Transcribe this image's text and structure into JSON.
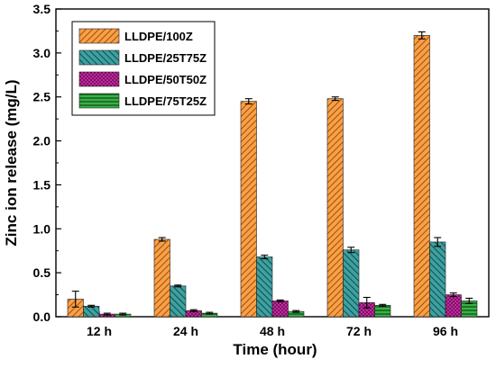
{
  "chart_data": {
    "type": "bar",
    "title": "",
    "xlabel": "Time (hour)",
    "ylabel": "Zinc ion release (mg/L)",
    "ylim": [
      0,
      3.5
    ],
    "yticks": [
      "0.0",
      "0.5",
      "1.0",
      "1.5",
      "2.0",
      "2.5",
      "3.0",
      "3.5"
    ],
    "categories": [
      "12 h",
      "24 h",
      "48 h",
      "72 h",
      "96 h"
    ],
    "legend_position": "top-left",
    "grid": false,
    "series": [
      {
        "name": "LLDPE/100Z",
        "color": "#f28c28",
        "pattern": "diagonal-hatch",
        "values": [
          0.2,
          0.88,
          2.45,
          2.48,
          3.2
        ],
        "errors": [
          0.09,
          0.02,
          0.03,
          0.02,
          0.04
        ]
      },
      {
        "name": "LLDPE/25T75Z",
        "color": "#2e8b8b",
        "pattern": "diagonal-hatch",
        "values": [
          0.12,
          0.35,
          0.68,
          0.76,
          0.85
        ],
        "errors": [
          0.01,
          0.01,
          0.02,
          0.03,
          0.05
        ]
      },
      {
        "name": "LLDPE/50T50Z",
        "color": "#b0198c",
        "pattern": "dotted",
        "values": [
          0.03,
          0.07,
          0.18,
          0.16,
          0.25
        ],
        "errors": [
          0.01,
          0.01,
          0.01,
          0.06,
          0.02
        ]
      },
      {
        "name": "LLDPE/75T25Z",
        "color": "#2e9e3a",
        "pattern": "horizontal-lines",
        "values": [
          0.03,
          0.04,
          0.06,
          0.13,
          0.18
        ],
        "errors": [
          0.01,
          0.01,
          0.01,
          0.01,
          0.03
        ]
      }
    ]
  }
}
